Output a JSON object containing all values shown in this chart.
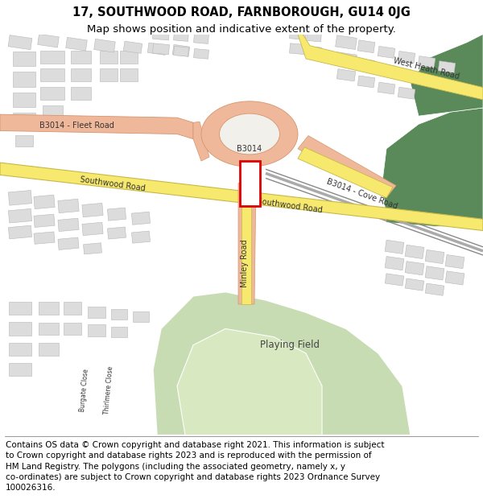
{
  "title_line1": "17, SOUTHWOOD ROAD, FARNBOROUGH, GU14 0JG",
  "title_line2": "Map shows position and indicative extent of the property.",
  "footer_text": "Contains OS data © Crown copyright and database right 2021. This information is subject to Crown copyright and database rights 2023 and is reproduced with the permission of HM Land Registry. The polygons (including the associated geometry, namely x, y co-ordinates) are subject to Crown copyright and database rights 2023 Ordnance Survey 100026316.",
  "title_fontsize": 10.5,
  "subtitle_fontsize": 9.5,
  "footer_fontsize": 7.5,
  "bg_color": "#ffffff",
  "map_bg": "#f2f0eb",
  "road_yellow": "#f7e96e",
  "road_yellow_border": "#c8b84a",
  "road_salmon": "#f0b89a",
  "road_salmon_border": "#d4956e",
  "building_color": "#dcdcdc",
  "building_edge": "#b8b8b8",
  "playing_field_light": "#c8dcb4",
  "playing_field_dark": "#5a8a5a",
  "property_rect_color": "#dd0000",
  "line_color": "#aaaaaa"
}
